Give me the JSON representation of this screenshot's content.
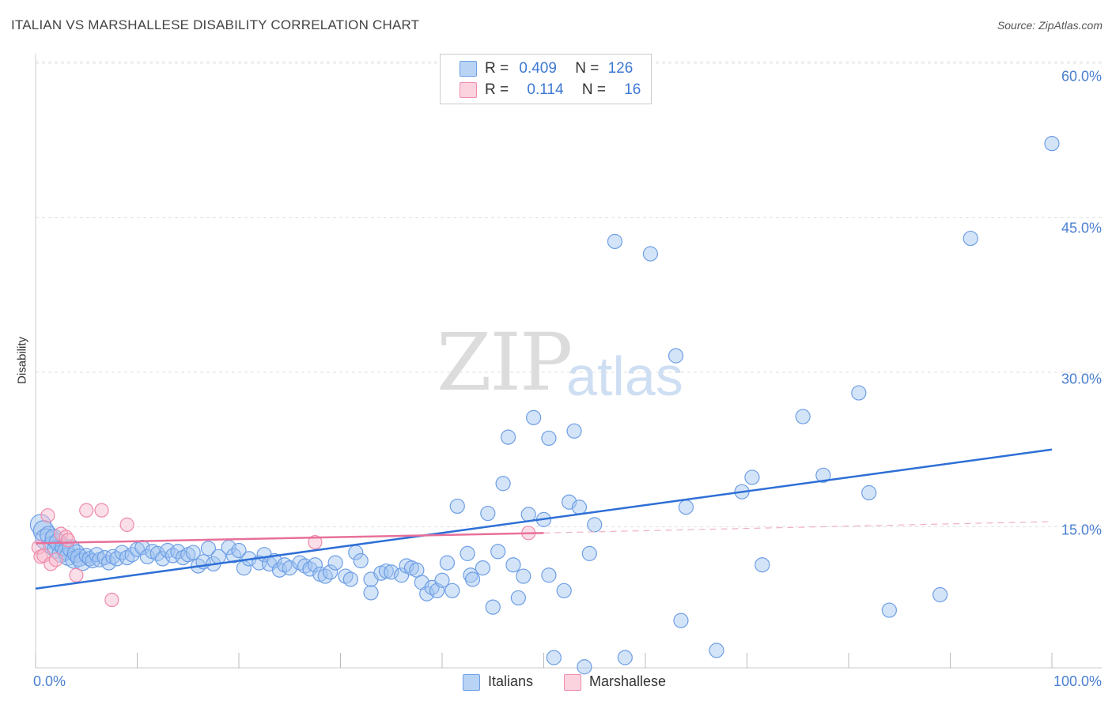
{
  "title": "ITALIAN VS MARSHALLESE DISABILITY CORRELATION CHART",
  "source": "Source: ZipAtlas.com",
  "watermark": {
    "zip": "ZIP",
    "atlas": "atlas"
  },
  "legend": {
    "rows": [
      {
        "r_label": "R =",
        "r_value": "0.409",
        "n_label": "N =",
        "n_value": "126",
        "color": "#a9c8f0"
      },
      {
        "r_label": "R =",
        "r_value": "0.114",
        "n_label": "N =",
        "n_value": "16",
        "color": "#f7bccd"
      }
    ]
  },
  "bottom_legend": [
    {
      "label": "Italians",
      "color": "#a9c8f0"
    },
    {
      "label": "Marshallese",
      "color": "#f7bccd"
    }
  ],
  "chart_data": {
    "type": "scatter",
    "title": "ITALIAN VS MARSHALLESE DISABILITY CORRELATION CHART",
    "xlabel": "",
    "ylabel": "Disability",
    "xlim": [
      0,
      100
    ],
    "ylim": [
      0,
      60
    ],
    "x_tick_labels": [
      "0.0%",
      "100.0%"
    ],
    "y_ticks": [
      15,
      30,
      45,
      60
    ],
    "y_tick_labels": [
      "15.0%",
      "30.0%",
      "45.0%",
      "60.0%"
    ],
    "grid": true,
    "legend_position": "top-center",
    "colors": {
      "Italians": "#6d9ee6",
      "Marshallese": "#f08aaa",
      "italians_line": "#2e6fd6",
      "marshallese_line": "#e8709a"
    },
    "series": [
      {
        "name": "Italians",
        "trend": {
          "x": [
            0,
            100
          ],
          "y": [
            9.0,
            22.5
          ]
        },
        "points": [
          [
            0.5,
            15.2
          ],
          [
            0.8,
            14.6
          ],
          [
            1.0,
            13.8
          ],
          [
            1.3,
            14.2
          ],
          [
            1.6,
            13.2
          ],
          [
            1.8,
            13.9
          ],
          [
            2.0,
            12.8
          ],
          [
            2.2,
            13.5
          ],
          [
            2.5,
            12.4
          ],
          [
            2.8,
            13.0
          ],
          [
            3.0,
            12.6
          ],
          [
            3.2,
            12.1
          ],
          [
            3.5,
            12.9
          ],
          [
            3.8,
            11.8
          ],
          [
            4.0,
            12.4
          ],
          [
            4.3,
            12.0
          ],
          [
            4.6,
            11.6
          ],
          [
            5.0,
            12.2
          ],
          [
            5.3,
            11.9
          ],
          [
            5.6,
            11.7
          ],
          [
            6.0,
            12.3
          ],
          [
            6.3,
            11.8
          ],
          [
            6.8,
            12.0
          ],
          [
            7.2,
            11.5
          ],
          [
            7.6,
            12.1
          ],
          [
            8.0,
            11.9
          ],
          [
            8.5,
            12.5
          ],
          [
            9.0,
            12.0
          ],
          [
            9.5,
            12.3
          ],
          [
            10.0,
            12.8
          ],
          [
            10.5,
            13.0
          ],
          [
            11.0,
            12.1
          ],
          [
            11.5,
            12.6
          ],
          [
            12.0,
            12.4
          ],
          [
            12.5,
            11.9
          ],
          [
            13.0,
            12.7
          ],
          [
            13.5,
            12.2
          ],
          [
            14.0,
            12.6
          ],
          [
            14.5,
            12.0
          ],
          [
            15.0,
            12.3
          ],
          [
            15.5,
            12.5
          ],
          [
            16.0,
            11.2
          ],
          [
            16.5,
            11.6
          ],
          [
            17.0,
            12.9
          ],
          [
            17.5,
            11.4
          ],
          [
            18.0,
            12.1
          ],
          [
            19.0,
            13.0
          ],
          [
            19.5,
            12.2
          ],
          [
            20.0,
            12.7
          ],
          [
            20.5,
            11.0
          ],
          [
            21.0,
            11.9
          ],
          [
            22.0,
            11.5
          ],
          [
            22.5,
            12.3
          ],
          [
            23.0,
            11.4
          ],
          [
            23.5,
            11.7
          ],
          [
            24.0,
            10.8
          ],
          [
            24.5,
            11.3
          ],
          [
            25.0,
            11.0
          ],
          [
            26.0,
            11.5
          ],
          [
            26.5,
            11.2
          ],
          [
            27.0,
            10.9
          ],
          [
            27.5,
            11.3
          ],
          [
            28.0,
            10.4
          ],
          [
            28.5,
            10.2
          ],
          [
            29.0,
            10.6
          ],
          [
            29.5,
            11.5
          ],
          [
            30.5,
            10.2
          ],
          [
            31.0,
            9.9
          ],
          [
            31.5,
            12.5
          ],
          [
            32.0,
            11.7
          ],
          [
            33.0,
            8.6
          ],
          [
            33.0,
            9.9
          ],
          [
            34.0,
            10.5
          ],
          [
            34.5,
            10.7
          ],
          [
            35.0,
            10.6
          ],
          [
            36.0,
            10.3
          ],
          [
            36.5,
            11.2
          ],
          [
            37.0,
            11.0
          ],
          [
            37.5,
            10.8
          ],
          [
            38.0,
            9.6
          ],
          [
            38.5,
            8.5
          ],
          [
            39.0,
            9.1
          ],
          [
            39.5,
            8.8
          ],
          [
            40.0,
            9.8
          ],
          [
            40.5,
            11.5
          ],
          [
            41.0,
            8.8
          ],
          [
            41.5,
            17.0
          ],
          [
            42.5,
            12.4
          ],
          [
            42.8,
            10.3
          ],
          [
            43.0,
            9.9
          ],
          [
            44.0,
            11.0
          ],
          [
            44.5,
            16.3
          ],
          [
            45.0,
            7.2
          ],
          [
            45.5,
            12.6
          ],
          [
            46.0,
            19.2
          ],
          [
            46.5,
            23.7
          ],
          [
            47.0,
            11.3
          ],
          [
            47.5,
            8.1
          ],
          [
            48.0,
            10.2
          ],
          [
            48.5,
            16.2
          ],
          [
            49.0,
            25.6
          ],
          [
            50.0,
            15.7
          ],
          [
            50.5,
            10.3
          ],
          [
            50.5,
            23.6
          ],
          [
            51.0,
            2.3
          ],
          [
            52.0,
            8.8
          ],
          [
            52.5,
            17.4
          ],
          [
            53.0,
            24.3
          ],
          [
            53.5,
            16.9
          ],
          [
            54.0,
            1.4
          ],
          [
            54.5,
            12.4
          ],
          [
            55.0,
            15.2
          ],
          [
            57.0,
            42.7
          ],
          [
            58.0,
            2.3
          ],
          [
            60.5,
            41.5
          ],
          [
            63.0,
            31.6
          ],
          [
            63.5,
            5.9
          ],
          [
            64.0,
            16.9
          ],
          [
            67.0,
            3.0
          ],
          [
            69.5,
            18.4
          ],
          [
            70.5,
            19.8
          ],
          [
            71.5,
            11.3
          ],
          [
            75.5,
            25.7
          ],
          [
            77.5,
            20.0
          ],
          [
            81.0,
            28.0
          ],
          [
            82.0,
            18.3
          ],
          [
            84.0,
            6.9
          ],
          [
            89.0,
            8.4
          ],
          [
            92.0,
            43.0
          ],
          [
            100.0,
            52.2
          ]
        ]
      },
      {
        "name": "Marshallese",
        "trend": {
          "x": [
            0,
            50
          ],
          "y": [
            13.4,
            14.4
          ]
        },
        "trend_extension": {
          "x": [
            50,
            100
          ],
          "y": [
            14.4,
            15.5
          ]
        },
        "points": [
          [
            0.3,
            13.0
          ],
          [
            0.5,
            12.1
          ],
          [
            0.8,
            12.2
          ],
          [
            1.2,
            16.1
          ],
          [
            1.5,
            11.4
          ],
          [
            2.0,
            11.8
          ],
          [
            2.5,
            14.3
          ],
          [
            3.0,
            14.0
          ],
          [
            3.2,
            13.7
          ],
          [
            4.0,
            10.3
          ],
          [
            5.0,
            16.6
          ],
          [
            6.5,
            16.6
          ],
          [
            7.5,
            7.9
          ],
          [
            9.0,
            15.2
          ],
          [
            27.5,
            13.5
          ],
          [
            48.5,
            14.4
          ]
        ]
      }
    ]
  }
}
